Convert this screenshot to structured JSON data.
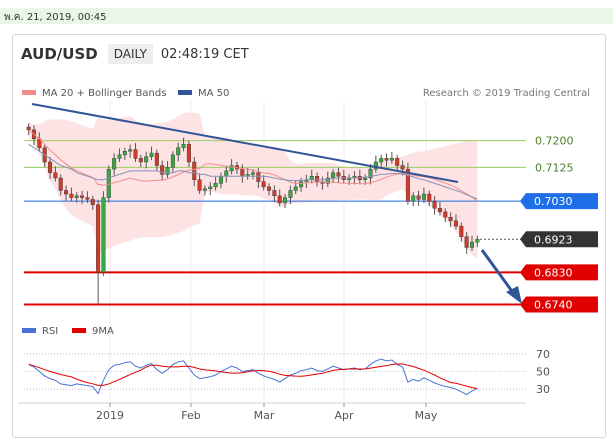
{
  "timestamp": "พ.ค. 21, 2019, 00:45",
  "header": {
    "pair": "AUD/USD",
    "timeframe": "DAILY",
    "time": "02:48:19 CET"
  },
  "chart_data": {
    "type": "candlestick",
    "price_legend": [
      {
        "label": "MA 20 + Bollinger Bands",
        "color": "#f28b8b"
      },
      {
        "label": "MA 50",
        "color": "#2f5597"
      }
    ],
    "credit": "Research © 2019 Trading Central",
    "price_range": [
      0.673,
      0.73
    ],
    "levels": [
      {
        "label": "0.7200",
        "value": 0.72,
        "style": "resistance",
        "color": "#9ccc65"
      },
      {
        "label": "0.7125",
        "value": 0.7125,
        "style": "resistance",
        "color": "#9ccc65"
      },
      {
        "label": "0.7030",
        "value": 0.703,
        "style": "pivot",
        "color": "#1e6ee8"
      },
      {
        "label": "0.6923",
        "value": 0.6923,
        "style": "last",
        "color": "#333333"
      },
      {
        "label": "0.6830",
        "value": 0.683,
        "style": "support",
        "color": "#e00000"
      },
      {
        "label": "0.6740",
        "value": 0.674,
        "style": "support",
        "color": "#e00000"
      }
    ],
    "x_ticks": [
      "2019",
      "Feb",
      "Mar",
      "Apr",
      "May"
    ],
    "closes": [
      0.723,
      0.7205,
      0.718,
      0.714,
      0.711,
      0.7095,
      0.706,
      0.705,
      0.704,
      0.7045,
      0.704,
      0.7035,
      0.702,
      0.683,
      0.704,
      0.712,
      0.715,
      0.716,
      0.717,
      0.7175,
      0.715,
      0.714,
      0.7155,
      0.7165,
      0.713,
      0.7105,
      0.7125,
      0.716,
      0.718,
      0.719,
      0.714,
      0.709,
      0.706,
      0.7065,
      0.707,
      0.708,
      0.71,
      0.7115,
      0.713,
      0.712,
      0.71,
      0.7105,
      0.711,
      0.7085,
      0.707,
      0.706,
      0.7045,
      0.7025,
      0.704,
      0.706,
      0.707,
      0.7085,
      0.709,
      0.71,
      0.7085,
      0.708,
      0.7095,
      0.711,
      0.71,
      0.709,
      0.7095,
      0.71,
      0.709,
      0.7095,
      0.712,
      0.714,
      0.715,
      0.7145,
      0.715,
      0.713,
      0.712,
      0.703,
      0.7045,
      0.7035,
      0.705,
      0.703,
      0.701,
      0.7,
      0.6985,
      0.6975,
      0.696,
      0.693,
      0.69,
      0.6915,
      0.6923
    ],
    "ma50": [
      0.719,
      0.718,
      0.717,
      0.716,
      0.715,
      0.714,
      0.713,
      0.7125,
      0.712,
      0.711,
      0.7105,
      0.71,
      0.7095,
      0.709,
      0.709,
      0.7095,
      0.71,
      0.7105,
      0.711,
      0.7115,
      0.7115,
      0.7115,
      0.7115,
      0.7115,
      0.7115,
      0.711,
      0.711,
      0.711,
      0.7115,
      0.7115,
      0.711,
      0.711,
      0.7105,
      0.7105,
      0.71,
      0.71,
      0.71,
      0.71,
      0.71,
      0.71,
      0.71,
      0.71,
      0.71,
      0.71,
      0.71,
      0.7098,
      0.7095,
      0.7092,
      0.709,
      0.7088,
      0.7088,
      0.7088,
      0.709,
      0.709,
      0.709,
      0.709,
      0.7092,
      0.7094,
      0.7095,
      0.7095,
      0.7095,
      0.7096,
      0.7096,
      0.7097,
      0.71,
      0.7102,
      0.7105,
      0.7106,
      0.7108,
      0.7108,
      0.7106,
      0.7102,
      0.7098,
      0.7093,
      0.709,
      0.7085,
      0.708,
      0.7075,
      0.707,
      0.7065,
      0.706,
      0.7055,
      0.7048,
      0.7042,
      0.7036
    ],
    "rsi": {
      "legend": [
        {
          "label": "RSI",
          "color": "#4a72d4"
        },
        {
          "label": "9MA",
          "color": "#e00000"
        }
      ],
      "ticks": [
        "70",
        "50",
        "30"
      ],
      "range": [
        20,
        80
      ],
      "values": [
        58,
        55,
        50,
        45,
        42,
        40,
        36,
        35,
        34,
        36,
        35,
        34,
        33,
        25,
        40,
        52,
        57,
        58,
        60,
        61,
        56,
        54,
        57,
        59,
        52,
        48,
        52,
        58,
        61,
        62,
        54,
        46,
        42,
        43,
        44,
        46,
        50,
        53,
        56,
        54,
        50,
        51,
        52,
        48,
        45,
        43,
        41,
        38,
        42,
        46,
        48,
        51,
        52,
        54,
        51,
        50,
        53,
        56,
        54,
        52,
        53,
        54,
        52,
        53,
        58,
        62,
        64,
        62,
        63,
        58,
        55,
        38,
        41,
        39,
        43,
        40,
        37,
        35,
        33,
        32,
        30,
        27,
        24,
        28,
        31
      ]
    }
  }
}
